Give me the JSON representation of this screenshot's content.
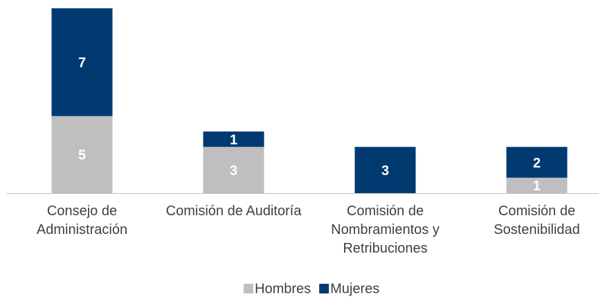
{
  "chart_data": {
    "type": "stacked_bar",
    "categories": [
      "Consejo de Administración",
      "Comisión de Auditoría",
      "Comisión de Nombramientos y Retribuciones",
      "Comisión de Sostenibilidad"
    ],
    "series": [
      {
        "name": "Hombres",
        "color": "#bfbfbf",
        "values": [
          5,
          3,
          0,
          1
        ]
      },
      {
        "name": "Mujeres",
        "color": "#003a70",
        "values": [
          7,
          1,
          3,
          2
        ]
      }
    ],
    "ylim": [
      0,
      12
    ],
    "legend": "bottom"
  }
}
